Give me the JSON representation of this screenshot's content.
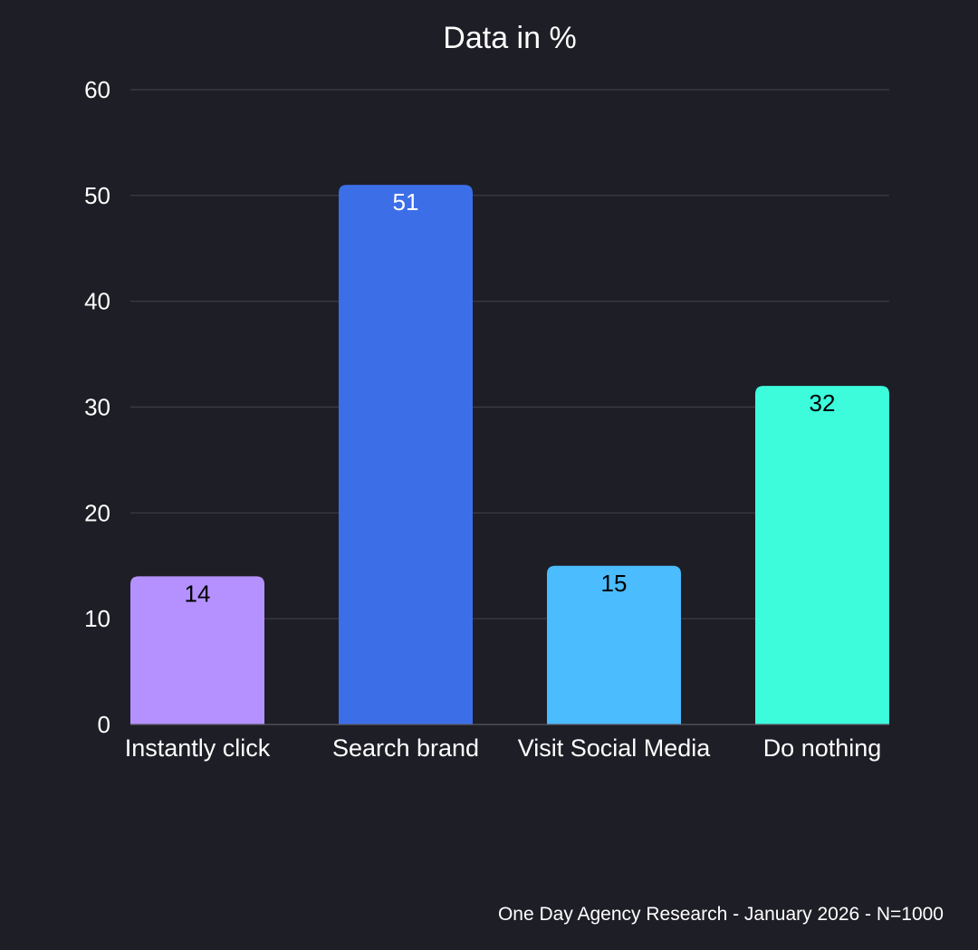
{
  "chart_data": {
    "type": "bar",
    "title": "Data in %",
    "categories": [
      "Instantly click",
      "Search brand",
      "Visit Social Media",
      "Do nothing"
    ],
    "values": [
      14,
      51,
      15,
      32
    ],
    "bar_colors": [
      "#b491fe",
      "#3c6ee8",
      "#4bbcfe",
      "#3cfcdc"
    ],
    "data_label_colors": [
      "#000000",
      "#ffffff",
      "#000000",
      "#000000"
    ],
    "ylim": [
      0,
      60
    ],
    "yticks": [
      0,
      10,
      20,
      30,
      40,
      50,
      60
    ],
    "xlabel": "",
    "ylabel": "",
    "grid": true,
    "legend": "none"
  },
  "footer": {
    "source": "One Day Agency Research - January 2026 - N=1000"
  },
  "colors": {
    "background": "#1e1e26",
    "text": "#ffffff",
    "gridline": "#3e3e48"
  }
}
